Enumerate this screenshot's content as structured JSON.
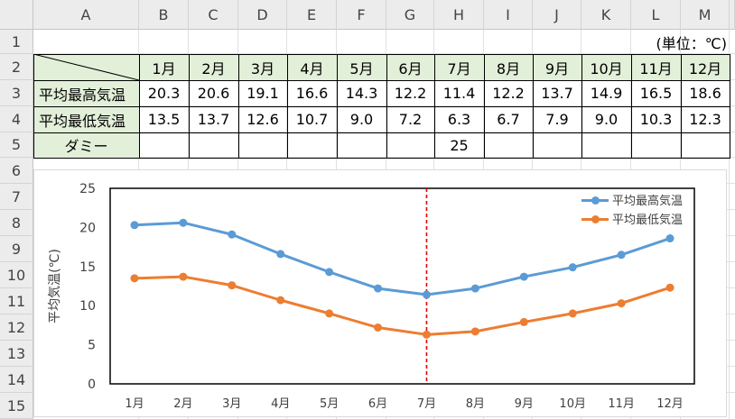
{
  "sheet": {
    "columns": [
      "A",
      "B",
      "C",
      "D",
      "E",
      "F",
      "G",
      "H",
      "I",
      "J",
      "K",
      "L",
      "M"
    ],
    "rows": [
      "1",
      "2",
      "3",
      "4",
      "5",
      "6",
      "7",
      "8",
      "9",
      "10",
      "11",
      "12",
      "13",
      "14",
      "15"
    ],
    "unit_label": "(単位：℃)",
    "months": [
      "1月",
      "2月",
      "3月",
      "4月",
      "5月",
      "6月",
      "7月",
      "8月",
      "9月",
      "10月",
      "11月",
      "12月"
    ],
    "row3": {
      "label": "平均最高気温",
      "values": [
        "20.3",
        "20.6",
        "19.1",
        "16.6",
        "14.3",
        "12.2",
        "11.4",
        "12.2",
        "13.7",
        "14.9",
        "16.5",
        "18.6"
      ]
    },
    "row4": {
      "label": "平均最低気温",
      "values": [
        "13.5",
        "13.7",
        "12.6",
        "10.7",
        "9.0",
        "7.2",
        "6.3",
        "6.7",
        "7.9",
        "9.0",
        "10.3",
        "12.3"
      ]
    },
    "row5": {
      "label": "ダミー",
      "value_h": "25"
    }
  },
  "colors": {
    "high": "#5b9bd5",
    "low": "#ed7d31",
    "marker_line": "#e00000",
    "header_fill": "#e2efd9"
  },
  "chart_data": {
    "type": "line",
    "categories": [
      "1月",
      "2月",
      "3月",
      "4月",
      "5月",
      "6月",
      "7月",
      "8月",
      "9月",
      "10月",
      "11月",
      "12月"
    ],
    "series": [
      {
        "name": "平均最高気温",
        "values": [
          20.3,
          20.6,
          19.1,
          16.6,
          14.3,
          12.2,
          11.4,
          12.2,
          13.7,
          14.9,
          16.5,
          18.6
        ]
      },
      {
        "name": "平均最低気温",
        "values": [
          13.5,
          13.7,
          12.6,
          10.7,
          9.0,
          7.2,
          6.3,
          6.7,
          7.9,
          9.0,
          10.3,
          12.3
        ]
      }
    ],
    "dummy_series": {
      "name": "ダミー",
      "category": "7月",
      "value": 25,
      "style": "dashed vertical"
    },
    "ylabel": "平均気温(℃)",
    "xlabel": "",
    "ylim": [
      0,
      25
    ],
    "yticks": [
      0,
      5,
      10,
      15,
      20,
      25
    ],
    "grid": false,
    "legend": "top-right"
  }
}
